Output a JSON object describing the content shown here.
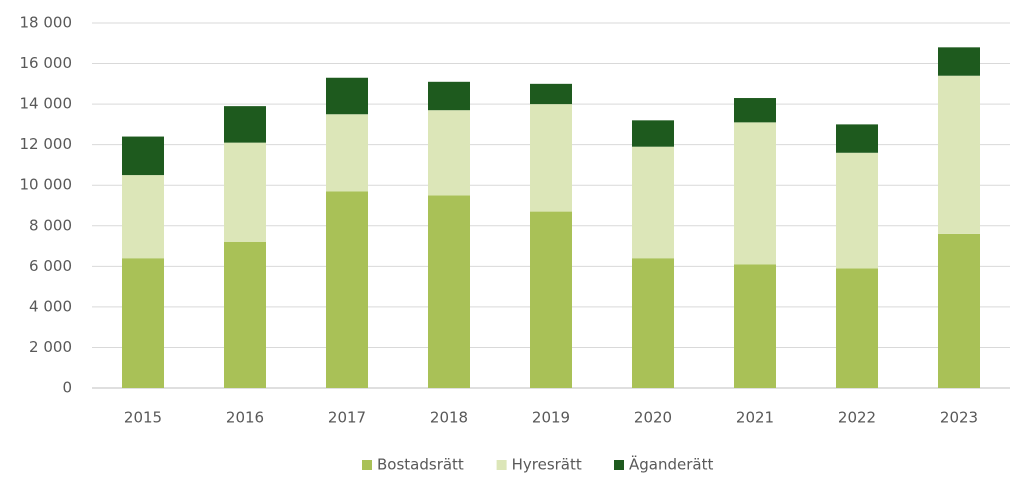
{
  "chart_data": {
    "type": "stacked_bar",
    "categories": [
      "2015",
      "2016",
      "2017",
      "2018",
      "2019",
      "2020",
      "2021",
      "2022",
      "2023"
    ],
    "series": [
      {
        "name": "Bostadsrätt",
        "color": "#a9c157",
        "values": [
          6400,
          7200,
          9700,
          9500,
          8700,
          6400,
          6100,
          5900,
          7600
        ]
      },
      {
        "name": "Hyresrätt",
        "color": "#dce6b8",
        "values": [
          4100,
          4900,
          3800,
          4200,
          5300,
          5500,
          7000,
          5700,
          7800
        ]
      },
      {
        "name": "Äganderätt",
        "color": "#1e5a1e",
        "values": [
          1900,
          1800,
          1800,
          1400,
          1000,
          1300,
          1200,
          1400,
          1400
        ]
      }
    ],
    "ylim": [
      0,
      18000
    ],
    "yticks": [
      0,
      {
        "value": 2000,
        "label": "2 000"
      },
      {
        "value": 4000,
        "label": "4 000"
      },
      {
        "value": 6000,
        "label": "6 000"
      },
      {
        "value": 8000,
        "label": "8 000"
      },
      {
        "value": 10000,
        "label": "10 000"
      },
      {
        "value": 12000,
        "label": "12 000"
      },
      {
        "value": 14000,
        "label": "14 000"
      },
      {
        "value": 16000,
        "label": "16 000"
      },
      {
        "value": 18000,
        "label": "18 000"
      }
    ],
    "grid": true,
    "legend": "bottom"
  }
}
